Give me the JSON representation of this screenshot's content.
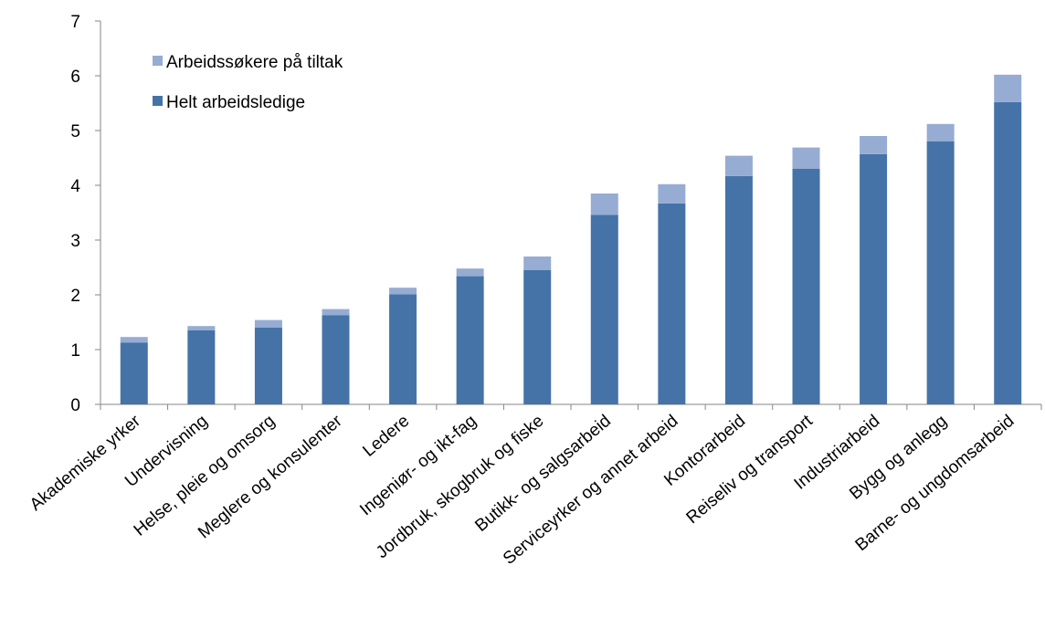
{
  "chart_data": {
    "type": "bar",
    "stacked": true,
    "categories": [
      "Akademiske yrker",
      "Undervisning",
      "Helse, pleie og omsorg",
      "Meglere og konsulenter",
      "Ledere",
      "Ingeniør- og ikt-fag",
      "Jordbruk, skogbruk og fiske",
      "Butikk- og salgsarbeid",
      "Serviceyrker og annet arbeid",
      "Kontorarbeid",
      "Reiseliv og transport",
      "Industriarbeid",
      "Bygg og anlegg",
      "Barne- og ungdomsarbeid"
    ],
    "series": [
      {
        "name": "Helt arbeidsledige",
        "color": "#4573a7",
        "values": [
          1.13,
          1.35,
          1.4,
          1.63,
          2.01,
          2.34,
          2.45,
          3.46,
          3.67,
          4.17,
          4.3,
          4.57,
          4.8,
          5.52
        ]
      },
      {
        "name": "Arbeidssøkere på tiltak",
        "color": "#96acd2",
        "values": [
          0.1,
          0.08,
          0.14,
          0.11,
          0.12,
          0.14,
          0.25,
          0.39,
          0.35,
          0.37,
          0.39,
          0.33,
          0.32,
          0.5
        ]
      }
    ],
    "ylim": [
      0,
      7
    ],
    "yticks": [
      "0",
      "1",
      "2",
      "3",
      "4",
      "5",
      "6",
      "7"
    ],
    "grid": false,
    "legend_position": "top-left",
    "legend_order": [
      "Arbeidssøkere på tiltak",
      "Helt arbeidsledige"
    ],
    "axis_color": "#868686"
  }
}
